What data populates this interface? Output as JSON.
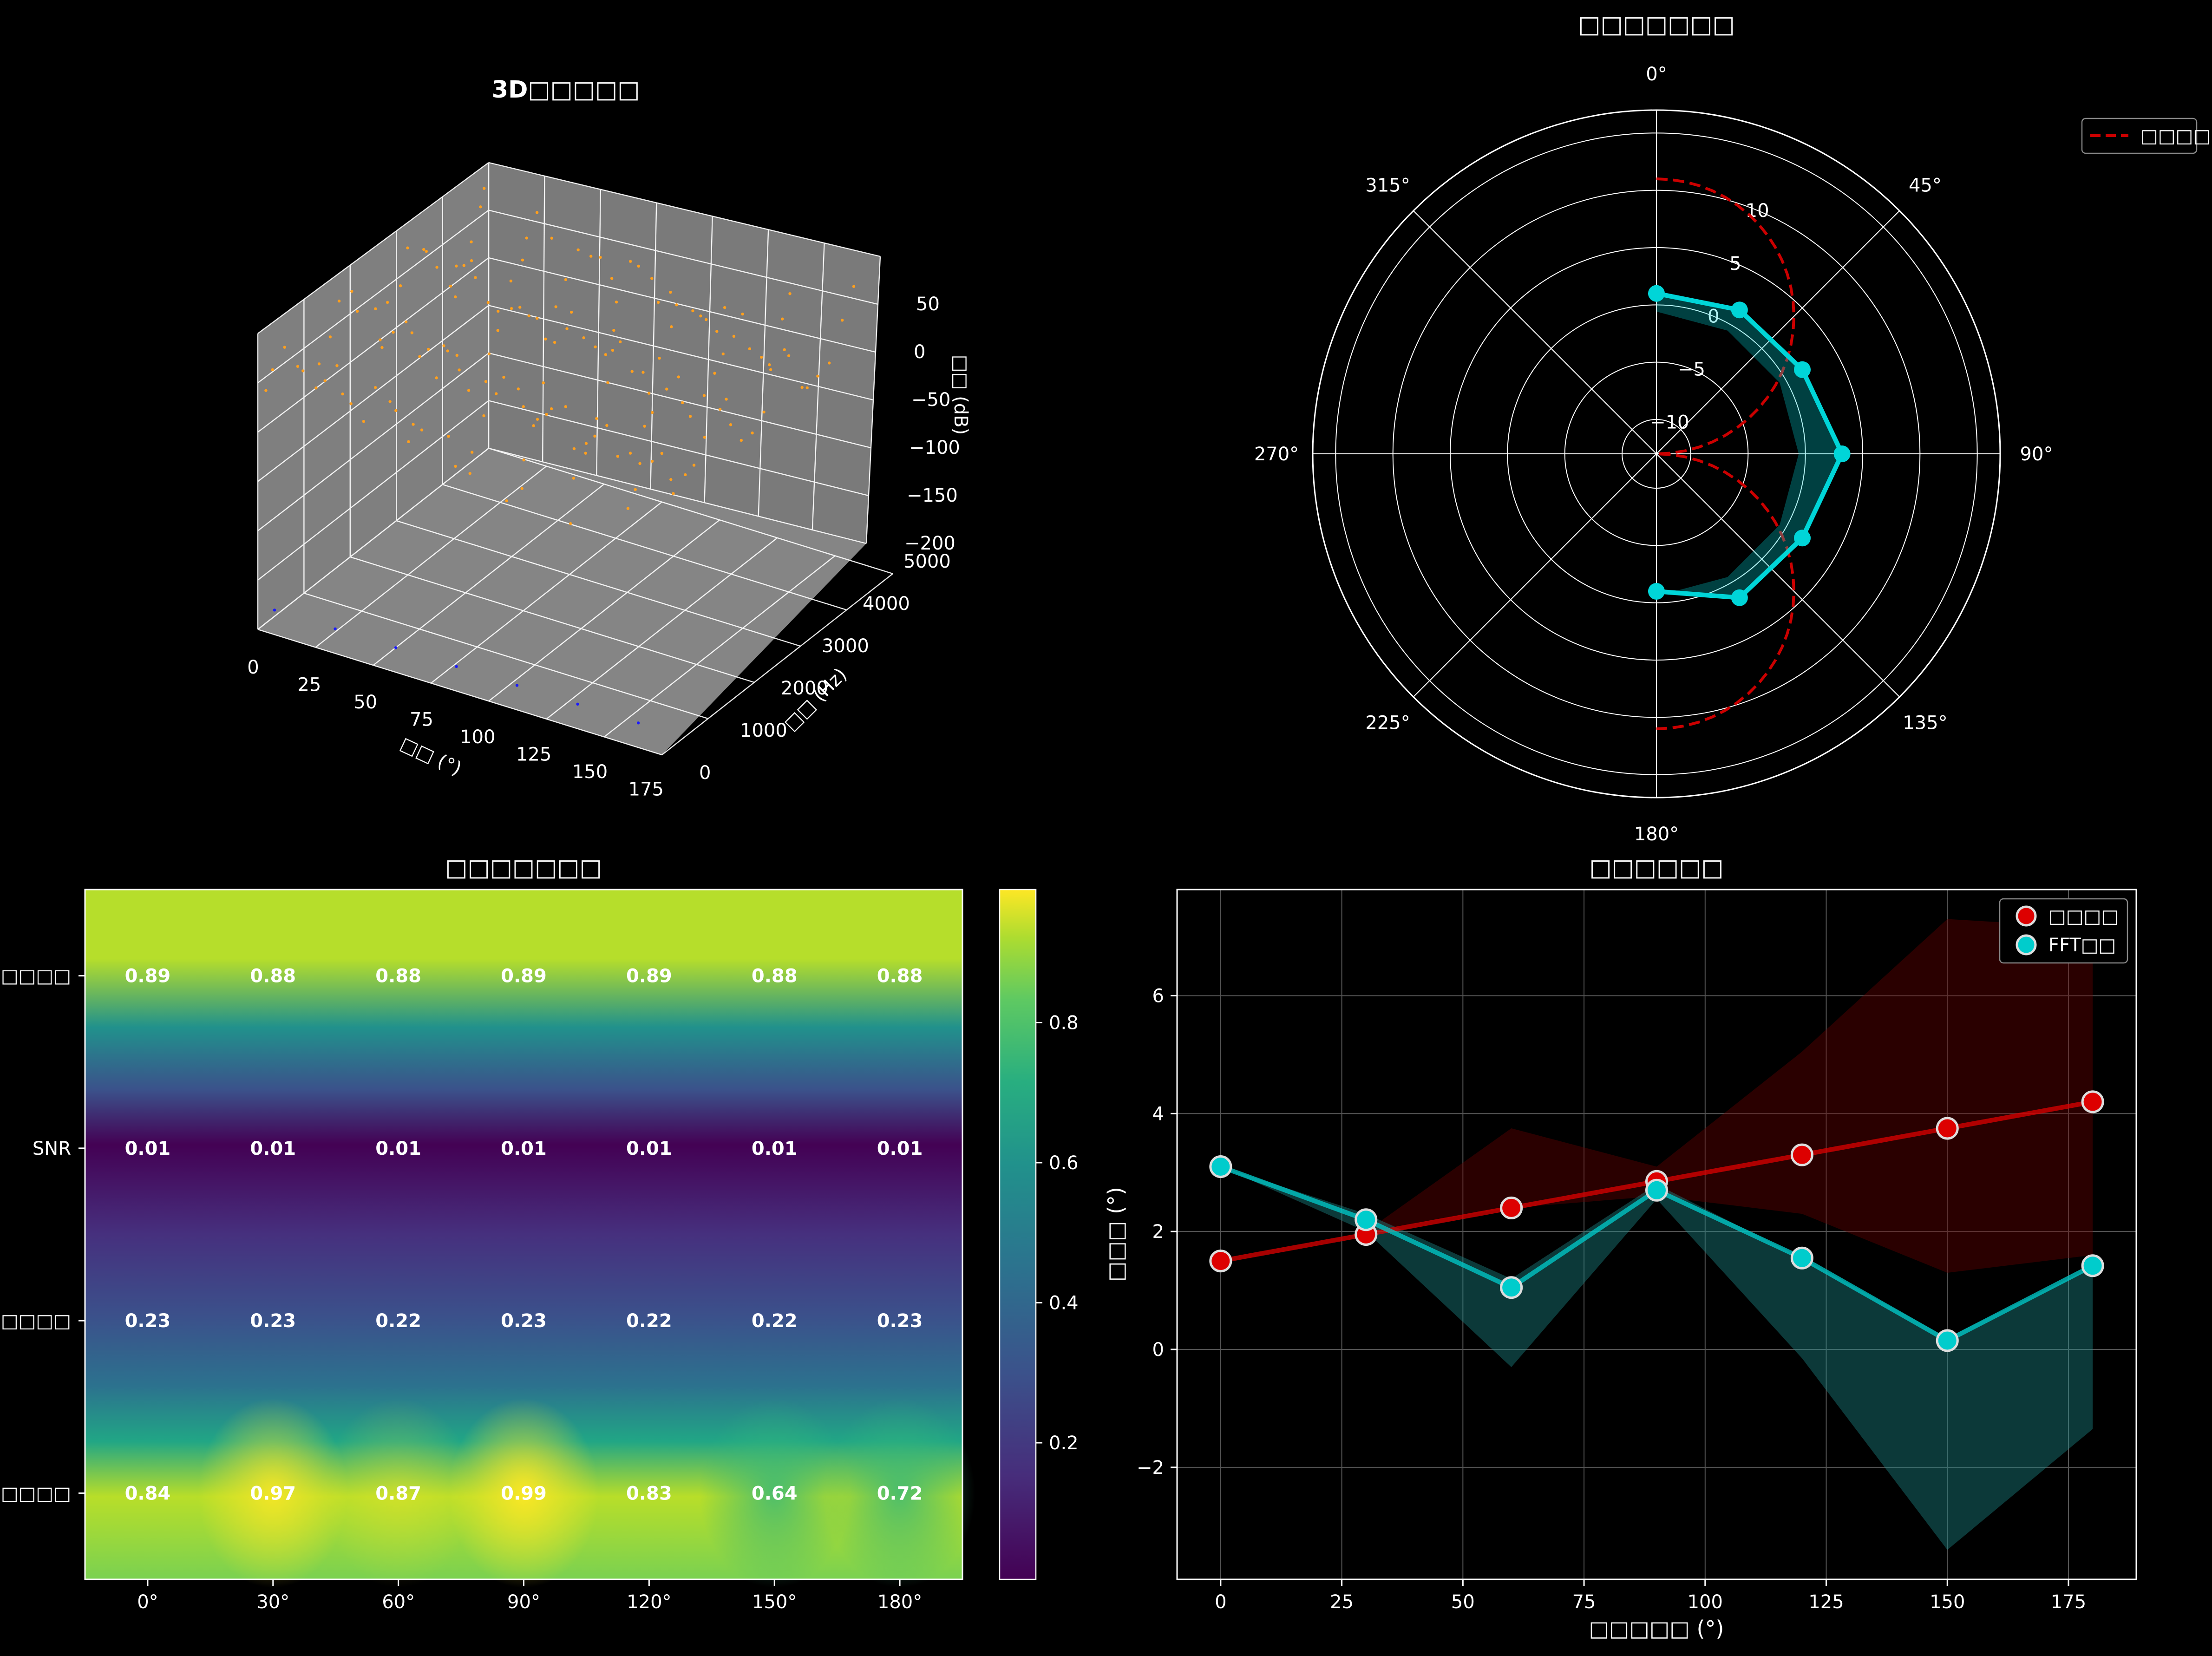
{
  "figure": {
    "background": "#000000"
  },
  "charts": {
    "surface3d": {
      "title": "3D□□□□□",
      "xlabel": "□□ (°)",
      "ylabel": "□□ (Hz)",
      "zlabel": "□□ (dB)",
      "x_ticks": [
        "0",
        "25",
        "50",
        "75",
        "100",
        "125",
        "150",
        "175"
      ],
      "y_ticks": [
        "0",
        "1000",
        "2000",
        "3000",
        "4000",
        "5000"
      ],
      "z_ticks": [
        "50",
        "0",
        "−50",
        "−100",
        "−150",
        "−200"
      ]
    },
    "polar": {
      "title": "□□□□□□□",
      "angle_labels": [
        "0°",
        "45°",
        "90°",
        "135°",
        "180°",
        "225°",
        "270°",
        "315°"
      ],
      "radial_labels": [
        "−10",
        "−5",
        "0",
        "5",
        "10"
      ],
      "legend_label": "□□□□"
    },
    "heatmap": {
      "title": "□□□□□□□",
      "colorbar_ticks": [
        "0.2",
        "0.4",
        "0.6",
        "0.8"
      ]
    },
    "scatter": {
      "title": "□□□□□□"
    }
  },
  "chart_data": [
    {
      "type": "scatter",
      "title": "3D□□□□□",
      "xlabel": "□□ (°)",
      "ylabel": "□□ (Hz)",
      "zlabel": "□□ (dB)",
      "xlim": [
        0,
        180
      ],
      "ylim": [
        0,
        5000
      ],
      "zlim": [
        -220,
        80
      ],
      "note_points": "dense orange scatter near 0 dB across all angles/frequencies, sparse blue points near -200 dB at low frequency",
      "series": [
        {
          "color": "#ff9f1c",
          "z_level": 0
        },
        {
          "color": "#1a1aff",
          "z_level": -200
        }
      ],
      "legend": "none"
    },
    {
      "type": "line",
      "title": "□□□□□□□",
      "projection": "polar",
      "theta": [
        0,
        45,
        90,
        135,
        180
      ],
      "rlim": [
        -13,
        17
      ],
      "series": [
        {
          "name": "",
          "color": "#00d5d8",
          "theta": [
            0,
            30,
            60,
            90,
            120,
            150,
            180
          ],
          "r": [
            1,
            1.5,
            1.7,
            3.2,
            1.7,
            1.5,
            -1
          ]
        },
        {
          "name": "□□□□",
          "color": "#cc0000",
          "style": "dashed",
          "theta_curve": "cardioid-like, r from 11 at 0° to -13 at 90° to 11 at 180°"
        }
      ],
      "legend": "top-right"
    },
    {
      "type": "heatmap",
      "title": "□□□□□□□",
      "x_categories": [
        "0°",
        "30°",
        "60°",
        "90°",
        "120°",
        "150°",
        "180°"
      ],
      "y_categories": [
        "□□□□",
        "SNR",
        "□□□□",
        "□□□□□"
      ],
      "values": [
        [
          0.89,
          0.88,
          0.88,
          0.89,
          0.89,
          0.88,
          0.88
        ],
        [
          0.01,
          0.01,
          0.01,
          0.01,
          0.01,
          0.01,
          0.01
        ],
        [
          0.23,
          0.23,
          0.22,
          0.23,
          0.22,
          0.22,
          0.23
        ],
        [
          0.84,
          0.97,
          0.87,
          0.99,
          0.83,
          0.64,
          0.72
        ]
      ],
      "colormap": "viridis",
      "vmin": 0,
      "vmax": 1
    },
    {
      "type": "scatter",
      "title": "□□□□□□",
      "xlabel": "□□□□□ (°)",
      "ylabel": "□□□ (°)",
      "xlim": [
        -9,
        189
      ],
      "ylim": [
        -3.9,
        7.8
      ],
      "x_ticks": [
        0,
        25,
        50,
        75,
        100,
        125,
        150,
        175
      ],
      "y_ticks": [
        -2,
        0,
        2,
        4,
        6
      ],
      "grid": true,
      "x": [
        0,
        30,
        60,
        90,
        120,
        150,
        180
      ],
      "series": [
        {
          "name": "□□□□",
          "color": "#dd0000",
          "values": [
            1.5,
            1.95,
            2.4,
            2.85,
            3.3,
            3.75,
            4.2
          ],
          "band_upper": [
            1.5,
            2.0,
            3.75,
            3.1,
            5.05,
            7.3,
            7.15
          ],
          "band_lower": [
            1.5,
            2.0,
            2.4,
            2.6,
            2.3,
            1.3,
            1.6
          ]
        },
        {
          "name": "FFT□□",
          "color": "#00cccc",
          "values": [
            3.1,
            2.2,
            1.05,
            2.7,
            1.55,
            0.15,
            1.42
          ],
          "band_upper": [
            3.1,
            2.3,
            1.2,
            2.8,
            1.55,
            0.2,
            1.4
          ],
          "band_lower": [
            3.1,
            2.0,
            -0.3,
            2.55,
            -0.15,
            -3.4,
            -1.35
          ]
        }
      ],
      "legend": "top-right"
    }
  ]
}
